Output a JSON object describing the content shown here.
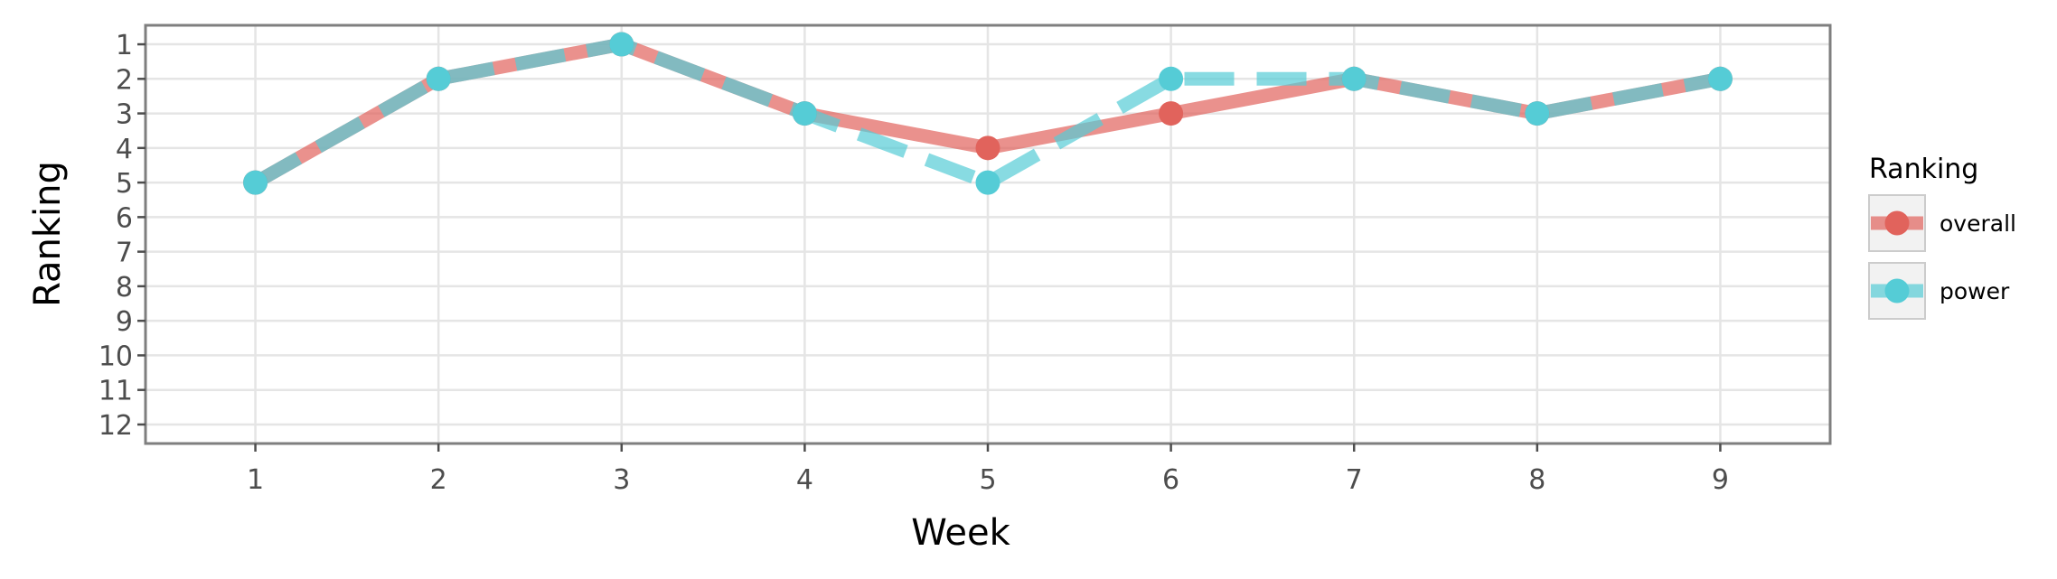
{
  "chart_data": {
    "type": "line",
    "xlabel": "Week",
    "ylabel": "Ranking",
    "x": [
      1,
      2,
      3,
      4,
      5,
      6,
      7,
      8,
      9
    ],
    "x_ticks": [
      "1",
      "2",
      "3",
      "4",
      "5",
      "6",
      "7",
      "8",
      "9"
    ],
    "xlim": [
      0.4,
      9.6
    ],
    "y_ticks": [
      "1",
      "2",
      "3",
      "4",
      "5",
      "6",
      "7",
      "8",
      "9",
      "10",
      "11",
      "12"
    ],
    "ylim": [
      12.55,
      0.45
    ],
    "y_reversed": true,
    "grid": true,
    "legend": {
      "title": "Ranking",
      "placement": "right"
    },
    "series": [
      {
        "name": "overall",
        "values": [
          5,
          2,
          1,
          3,
          4,
          3,
          2,
          3,
          2
        ],
        "color": "#E1635C",
        "line_style": "solid"
      },
      {
        "name": "power",
        "values": [
          5,
          2,
          1,
          3,
          5,
          2,
          2,
          3,
          2
        ],
        "color": "#55CCD6",
        "line_style": "dashed"
      }
    ]
  }
}
